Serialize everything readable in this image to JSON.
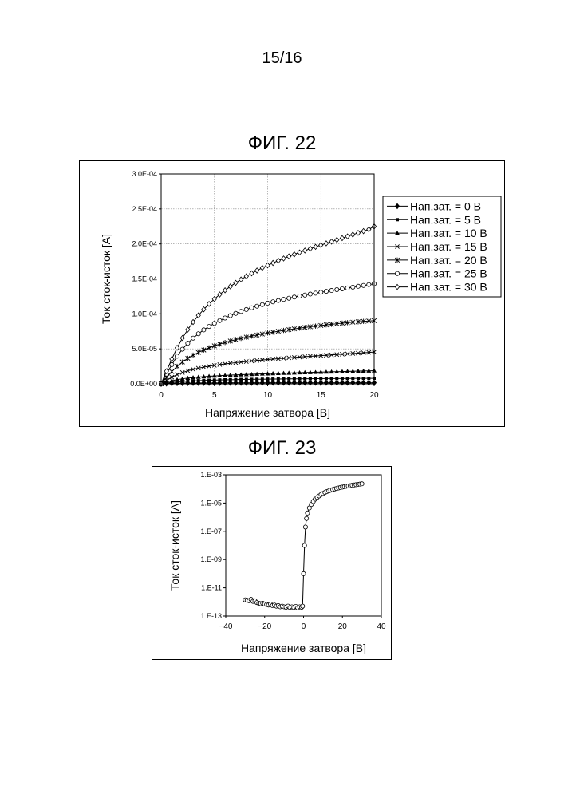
{
  "page": {
    "number": "15/16"
  },
  "figures": [
    {
      "title": "ФИГ. 22"
    },
    {
      "title": "ФИГ. 23"
    }
  ],
  "chart_data": [
    {
      "type": "line",
      "xlabel": "Напряжение затвора [В]",
      "ylabel": "Ток сток-исток [A]",
      "xlim": [
        0,
        20
      ],
      "ylim": [
        0,
        0.0003
      ],
      "x_ticks": [
        "0",
        "5",
        "10",
        "15",
        "20"
      ],
      "y_ticks": [
        "0.0E+00",
        "5.0E-05",
        "1.0E-04",
        "1.5E-04",
        "2.0E-04",
        "2.5E-04",
        "3.0E-04"
      ],
      "grid": true,
      "legend": "right",
      "x": [
        0,
        0.5,
        1,
        1.5,
        2,
        2.5,
        3,
        3.5,
        4,
        4.5,
        5,
        5.5,
        6,
        6.5,
        7,
        7.5,
        8,
        8.5,
        9,
        9.5,
        10,
        10.5,
        11,
        11.5,
        12,
        12.5,
        13,
        13.5,
        14,
        14.5,
        15,
        15.5,
        16,
        16.5,
        17,
        17.5,
        18,
        18.5,
        19,
        19.5,
        20
      ],
      "series": [
        {
          "name": "Нап.зат. = 0 В",
          "marker": "diamond-filled",
          "values": [
            0,
            4e-07,
            7e-07,
            9e-07,
            1e-06,
            1.1e-06,
            1.2e-06,
            1.2e-06,
            1.3e-06,
            1.3e-06,
            1.3e-06,
            1.3e-06,
            1.4e-06,
            1.4e-06,
            1.4e-06,
            1.4e-06,
            1.4e-06,
            1.4e-06,
            1.4e-06,
            1.4e-06,
            1.5e-06,
            1.5e-06,
            1.5e-06,
            1.5e-06,
            1.5e-06,
            1.5e-06,
            1.5e-06,
            1.5e-06,
            1.5e-06,
            1.5e-06,
            1.5e-06,
            1.5e-06,
            1.5e-06,
            1.5e-06,
            1.5e-06,
            1.5e-06,
            1.5e-06,
            1.5e-06,
            1.5e-06,
            1.5e-06,
            1.5e-06
          ]
        },
        {
          "name": "Нап.зат. = 5 В",
          "marker": "square-filled",
          "values": [
            0,
            1.1e-06,
            2e-06,
            2.7e-06,
            3.3e-06,
            3.8e-06,
            4.2e-06,
            4.5e-06,
            4.8e-06,
            5.1e-06,
            5.3e-06,
            5.5e-06,
            5.7e-06,
            5.9e-06,
            6e-06,
            6.2e-06,
            6.3e-06,
            6.4e-06,
            6.5e-06,
            6.6e-06,
            6.7e-06,
            6.8e-06,
            6.9e-06,
            7e-06,
            7.1e-06,
            7.1e-06,
            7.2e-06,
            7.3e-06,
            7.3e-06,
            7.4e-06,
            7.4e-06,
            7.5e-06,
            7.5e-06,
            7.6e-06,
            7.6e-06,
            7.7e-06,
            7.7e-06,
            7.8e-06,
            7.8e-06,
            7.8e-06,
            7.9e-06
          ]
        },
        {
          "name": "Нап.зат. = 10 В",
          "marker": "triangle-filled",
          "values": [
            0,
            2.5e-06,
            4.5e-06,
            6e-06,
            7.2e-06,
            8.2e-06,
            9e-06,
            9.7e-06,
            1.03e-05,
            1.08e-05,
            1.13e-05,
            1.17e-05,
            1.21e-05,
            1.25e-05,
            1.28e-05,
            1.31e-05,
            1.34e-05,
            1.37e-05,
            1.4e-05,
            1.43e-05,
            1.45e-05,
            1.48e-05,
            1.5e-05,
            1.53e-05,
            1.55e-05,
            1.57e-05,
            1.6e-05,
            1.62e-05,
            1.64e-05,
            1.66e-05,
            1.68e-05,
            1.7e-05,
            1.72e-05,
            1.74e-05,
            1.76e-05,
            1.78e-05,
            1.8e-05,
            1.82e-05,
            1.84e-05,
            1.86e-05,
            1.88e-05
          ]
        },
        {
          "name": "Нап.зат. = 15 В",
          "marker": "x",
          "values": [
            0,
            5e-06,
            9.5e-06,
            1.32e-05,
            1.62e-05,
            1.87e-05,
            2.07e-05,
            2.24e-05,
            2.39e-05,
            2.52e-05,
            2.64e-05,
            2.75e-05,
            2.85e-05,
            2.94e-05,
            3.03e-05,
            3.11e-05,
            3.19e-05,
            3.27e-05,
            3.34e-05,
            3.41e-05,
            3.48e-05,
            3.54e-05,
            3.6e-05,
            3.66e-05,
            3.72e-05,
            3.78e-05,
            3.83e-05,
            3.89e-05,
            3.94e-05,
            3.99e-05,
            4.04e-05,
            4.09e-05,
            4.14e-05,
            4.19e-05,
            4.24e-05,
            4.29e-05,
            4.34e-05,
            4.39e-05,
            4.44e-05,
            4.49e-05,
            4.55e-05
          ]
        },
        {
          "name": "Нап.зат. = 20 В",
          "marker": "asterisk",
          "values": [
            0,
            9e-06,
            1.75e-05,
            2.5e-05,
            3.12e-05,
            3.65e-05,
            4.1e-05,
            4.49e-05,
            4.84e-05,
            5.15e-05,
            5.43e-05,
            5.68e-05,
            5.91e-05,
            6.12e-05,
            6.32e-05,
            6.5e-05,
            6.67e-05,
            6.83e-05,
            6.98e-05,
            7.12e-05,
            7.26e-05,
            7.39e-05,
            7.51e-05,
            7.63e-05,
            7.75e-05,
            7.86e-05,
            7.96e-05,
            8.06e-05,
            8.16e-05,
            8.25e-05,
            8.34e-05,
            8.43e-05,
            8.51e-05,
            8.59e-05,
            8.67e-05,
            8.74e-05,
            8.81e-05,
            8.87e-05,
            8.93e-05,
            8.98e-05,
            9.03e-05
          ]
        },
        {
          "name": "Нап.зат. = 25 В",
          "marker": "circle-open",
          "values": [
            0,
            1.4e-05,
            2.75e-05,
            3.95e-05,
            4.95e-05,
            5.8e-05,
            6.53e-05,
            7.16e-05,
            7.71e-05,
            8.2e-05,
            8.64e-05,
            9.04e-05,
            9.41e-05,
            9.75e-05,
            0.0001006,
            0.0001035,
            0.0001062,
            0.0001087,
            0.000111,
            0.0001132,
            0.0001153,
            0.0001172,
            0.000119,
            0.0001207,
            0.0001224,
            0.000124,
            0.0001255,
            0.0001269,
            0.0001283,
            0.0001296,
            0.0001309,
            0.0001322,
            0.0001334,
            0.0001346,
            0.0001358,
            0.000137,
            0.0001382,
            0.0001394,
            0.0001406,
            0.0001418,
            0.000143
          ]
        },
        {
          "name": "Нап.зат. = 30 В",
          "marker": "diamond-open",
          "values": [
            0,
            1.8e-05,
            3.55e-05,
            5.15e-05,
            6.55e-05,
            7.75e-05,
            8.83e-05,
            9.78e-05,
            0.0001064,
            0.0001142,
            0.0001212,
            0.0001277,
            0.0001337,
            0.0001392,
            0.0001444,
            0.0001492,
            0.0001537,
            0.000158,
            0.000162,
            0.0001658,
            0.0001694,
            0.0001728,
            0.0001761,
            0.0001792,
            0.0001822,
            0.0001851,
            0.0001879,
            0.0001906,
            0.0001932,
            0.0001958,
            0.0001983,
            0.0002008,
            0.0002033,
            0.0002058,
            0.0002083,
            0.0002108,
            0.0002133,
            0.0002158,
            0.0002183,
            0.0002208,
            0.000225
          ]
        }
      ]
    },
    {
      "type": "line",
      "xlabel": "Напряжение затвора [В]",
      "ylabel": "Ток сток-исток [A]",
      "xlim": [
        -40,
        40
      ],
      "ylim": [
        1e-13,
        0.001
      ],
      "y_scale": "log",
      "x_ticks": [
        "−40",
        "−20",
        "0",
        "20",
        "40"
      ],
      "y_ticks": [
        "1.E-13",
        "1.E-11",
        "1.E-09",
        "1.E-07",
        "1.E-05",
        "1.E-03"
      ],
      "grid": false,
      "marker": "circle-open",
      "points": [
        [
          -30,
          1.4e-12
        ],
        [
          -29,
          1.3e-12
        ],
        [
          -28,
          1.2e-12
        ],
        [
          -27,
          1.5e-12
        ],
        [
          -26,
          1.1e-12
        ],
        [
          -25,
          1.2e-12
        ],
        [
          -24,
          9e-13
        ],
        [
          -23,
          8e-13
        ],
        [
          -22,
          7.5e-13
        ],
        [
          -21,
          8e-13
        ],
        [
          -20,
          7e-13
        ],
        [
          -19,
          6.5e-13
        ],
        [
          -18,
          6e-13
        ],
        [
          -17,
          7e-13
        ],
        [
          -16,
          5.5e-13
        ],
        [
          -15,
          6e-13
        ],
        [
          -14,
          5e-13
        ],
        [
          -13,
          5.5e-13
        ],
        [
          -12,
          4.5e-13
        ],
        [
          -11,
          5e-13
        ],
        [
          -10,
          4.5e-13
        ],
        [
          -9,
          4.2e-13
        ],
        [
          -8,
          5e-13
        ],
        [
          -7,
          4e-13
        ],
        [
          -6,
          4.5e-13
        ],
        [
          -5,
          4e-13
        ],
        [
          -4,
          4.8e-13
        ],
        [
          -3,
          3.8e-13
        ],
        [
          -2,
          4.5e-13
        ],
        [
          -1,
          4.2e-13
        ],
        [
          -0.5,
          5e-13
        ],
        [
          0,
          1e-10
        ],
        [
          0.5,
          1e-08
        ],
        [
          1,
          2e-07
        ],
        [
          1.5,
          8e-07
        ],
        [
          2,
          2e-06
        ],
        [
          3,
          4.5e-06
        ],
        [
          4,
          8e-06
        ],
        [
          5,
          1.3e-05
        ],
        [
          6,
          1.9e-05
        ],
        [
          7,
          2.5e-05
        ],
        [
          8,
          3.2e-05
        ],
        [
          9,
          4e-05
        ],
        [
          10,
          4.8e-05
        ],
        [
          11,
          5.6e-05
        ],
        [
          12,
          6.5e-05
        ],
        [
          13,
          7.3e-05
        ],
        [
          14,
          8.2e-05
        ],
        [
          15,
          9e-05
        ],
        [
          16,
          0.0001
        ],
        [
          17,
          0.000108
        ],
        [
          18,
          0.000117
        ],
        [
          19,
          0.000126
        ],
        [
          20,
          0.000135
        ],
        [
          21,
          0.000144
        ],
        [
          22,
          0.000153
        ],
        [
          23,
          0.000162
        ],
        [
          24,
          0.000171
        ],
        [
          25,
          0.00018
        ],
        [
          26,
          0.00019
        ],
        [
          27,
          0.0002
        ],
        [
          28,
          0.00021
        ],
        [
          29,
          0.00022
        ],
        [
          30,
          0.00023
        ]
      ]
    }
  ]
}
